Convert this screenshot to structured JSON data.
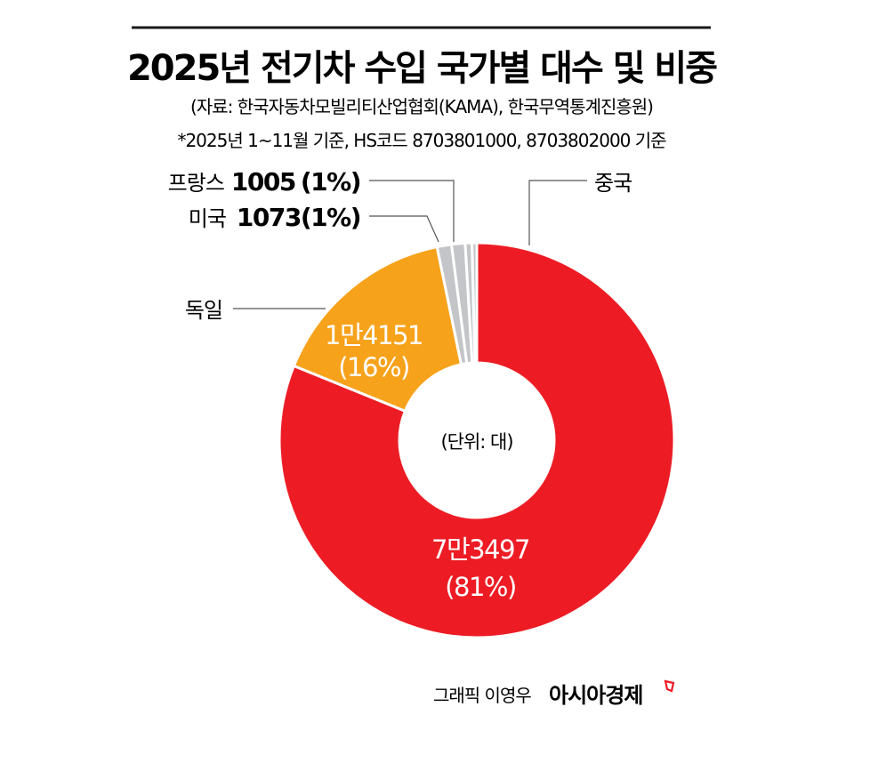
{
  "chart_data": {
    "type": "pie",
    "variant": "donut",
    "title": "2025년 전기차 수입 국가별 대수 및 비중",
    "source": "(자료: 한국자동차모빌리티산업협회(KAMA), 한국무역통계진흥원)",
    "note": "*2025년 1~11월 기준, HS코드 8703801000, 8703802000 기준",
    "unit_label": "(단위: 대)",
    "slices": [
      {
        "name": "중국",
        "value": 73497,
        "percent": 81,
        "value_label": "7만3497",
        "percent_label": "(81%)",
        "color": "#ED1C24"
      },
      {
        "name": "독일",
        "value": 14151,
        "percent": 16,
        "value_label": "1만4151",
        "percent_label": "(16%)",
        "color": "#F7A21B"
      },
      {
        "name": "미국",
        "value": 1073,
        "percent": 1,
        "value_label": "1073",
        "percent_label": "(1%)",
        "color": "#C3C5C8"
      },
      {
        "name": "프랑스",
        "value": 1005,
        "percent": 1,
        "value_label": "1005",
        "percent_label": "(1%)",
        "color": "#C3C5C8"
      },
      {
        "name": "",
        "value": 500,
        "color": "#C3C5C8"
      },
      {
        "name": "",
        "value": 350,
        "color": "#C3C5C8"
      }
    ],
    "start_angle": "top",
    "direction": "clockwise"
  },
  "credit": {
    "author": "그래픽 이영우",
    "logo": "아시아경제"
  }
}
